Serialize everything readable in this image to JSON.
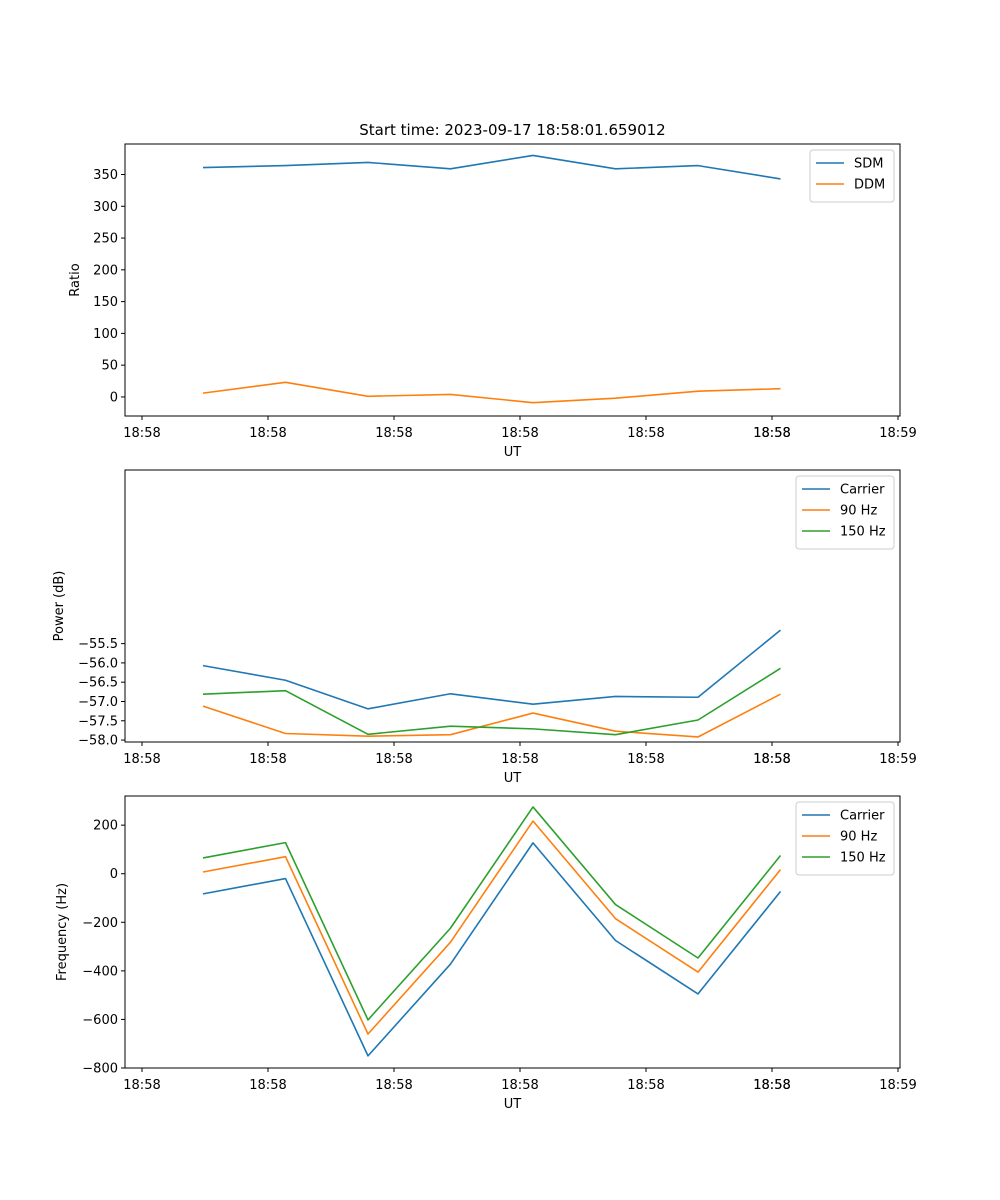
{
  "chart_data": [
    {
      "type": "line",
      "title": "Start time: 2023-09-17 18:58:01.659012",
      "xlabel": "UT",
      "ylabel": "Ratio",
      "x_tick_labels": [
        "18:58",
        "18:58",
        "18:58",
        "18:58",
        "18:58",
        "18:58",
        "18:58",
        "18:59"
      ],
      "ylim": [
        -30,
        398
      ],
      "y_ticks": [
        0,
        50,
        100,
        150,
        200,
        250,
        300,
        350
      ],
      "legend_position": "top-right",
      "series": [
        {
          "name": "SDM",
          "color": "#1f77b4",
          "values": [
            361,
            364,
            369,
            359,
            380,
            359,
            364,
            343
          ]
        },
        {
          "name": "DDM",
          "color": "#ff7f0e",
          "values": [
            6,
            23,
            1,
            4,
            -9,
            -2,
            9,
            13
          ]
        }
      ]
    },
    {
      "type": "line",
      "title": "",
      "xlabel": "UT",
      "ylabel": "Power (dB)",
      "x_tick_labels": [
        "18:58",
        "18:58",
        "18:58",
        "18:58",
        "18:58",
        "18:58",
        "18:58",
        "18:59"
      ],
      "ylim": [
        -58.05,
        -51.0
      ],
      "y_ticks": [
        -58.0,
        -57.5,
        -57.0,
        -56.5,
        -56.0,
        -55.5
      ],
      "legend_position": "top-right",
      "series": [
        {
          "name": "Carrier",
          "color": "#1f77b4",
          "values": [
            -56.07,
            -56.45,
            -57.19,
            -56.8,
            -57.07,
            -56.87,
            -56.89,
            -55.15
          ]
        },
        {
          "name": "90 Hz",
          "color": "#ff7f0e",
          "values": [
            -57.12,
            -57.83,
            -57.9,
            -57.86,
            -57.3,
            -57.77,
            -57.92,
            -56.81
          ]
        },
        {
          "name": "150 Hz",
          "color": "#2ca02c",
          "values": [
            -56.81,
            -56.72,
            -57.85,
            -57.64,
            -57.71,
            -57.86,
            -57.48,
            -56.14
          ]
        }
      ]
    },
    {
      "type": "line",
      "title": "",
      "xlabel": "UT",
      "ylabel": "Frequency (Hz)",
      "x_tick_labels": [
        "18:58",
        "18:58",
        "18:58",
        "18:58",
        "18:58",
        "18:58",
        "18:58",
        "18:59"
      ],
      "ylim": [
        -800,
        320
      ],
      "y_ticks": [
        -800,
        -600,
        -400,
        -200,
        0,
        200
      ],
      "legend_position": "top-right",
      "series": [
        {
          "name": "Carrier",
          "color": "#1f77b4",
          "values": [
            -83,
            -20,
            -750,
            -372,
            127,
            -275,
            -495,
            -73
          ]
        },
        {
          "name": "90 Hz",
          "color": "#ff7f0e",
          "values": [
            7,
            70,
            -660,
            -282,
            217,
            -185,
            -405,
            17
          ]
        },
        {
          "name": "150 Hz",
          "color": "#2ca02c",
          "values": [
            65,
            128,
            -602,
            -224,
            275,
            -127,
            -347,
            75
          ]
        }
      ]
    }
  ]
}
